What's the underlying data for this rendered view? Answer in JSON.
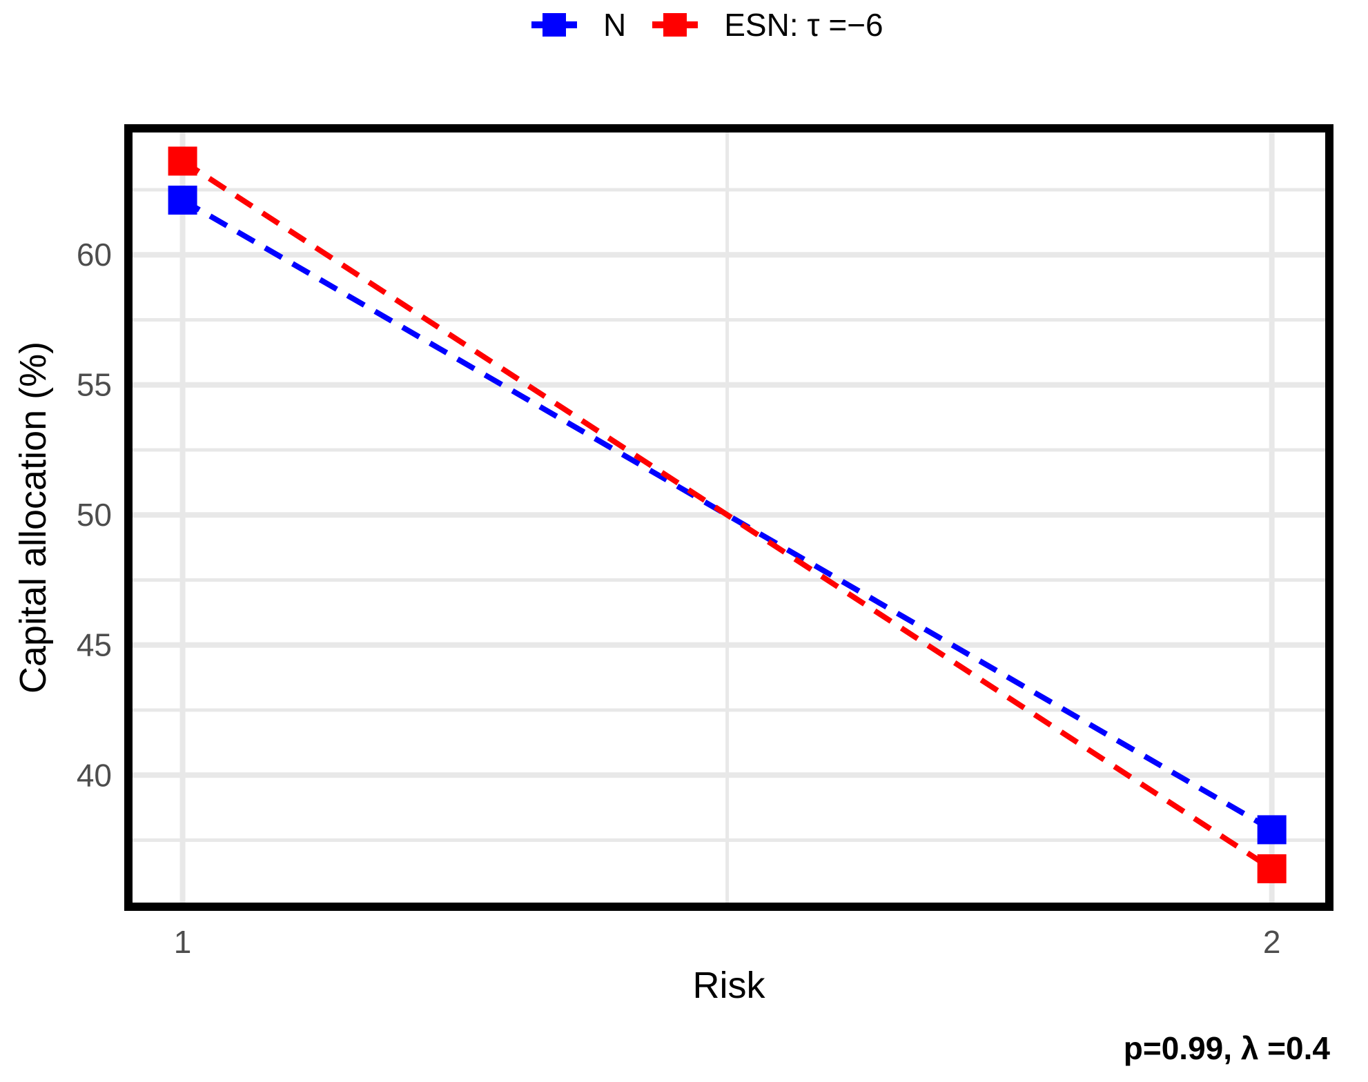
{
  "legend": {
    "position": "top",
    "items": [
      {
        "label": "N",
        "color": "#0000FF"
      },
      {
        "label": "ESN: τ =−6",
        "color": "#FF0000"
      }
    ]
  },
  "caption": {
    "text": "p=0.99, λ =0.4"
  },
  "chart_data": {
    "type": "line",
    "title": "",
    "xlabel": "Risk",
    "ylabel": "Capital allocation (%)",
    "x": [
      1,
      2
    ],
    "series": [
      {
        "name": "N",
        "color": "#0000FF",
        "values": [
          62.1,
          37.9
        ]
      },
      {
        "name": "ESN: τ =−6",
        "color": "#FF0000",
        "values": [
          63.6,
          36.4
        ]
      }
    ],
    "xlim": [
      0.954,
      2.049
    ],
    "ylim": [
      35.1,
      64.7
    ],
    "x_ticks": [
      1,
      2
    ],
    "y_ticks": [
      40,
      45,
      50,
      55,
      60
    ],
    "x_minor_ticks": [
      1.5
    ],
    "y_minor_ticks": [
      37.5,
      42.5,
      47.5,
      52.5,
      57.5,
      62.5
    ],
    "grid": "major+minor",
    "legend_position": "top",
    "line_style": "dashed",
    "marker": "square",
    "style": {
      "grid_color": "#E8E8E8",
      "panel_border_color": "#000000",
      "axis_text_color": "#4D4D4D"
    }
  }
}
